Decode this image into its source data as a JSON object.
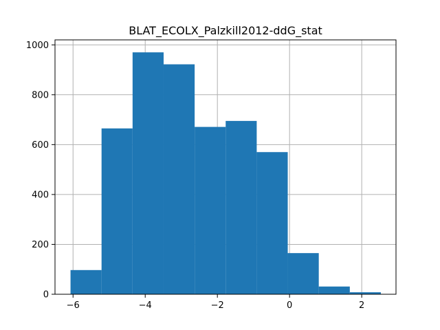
{
  "chart_data": {
    "type": "bar",
    "title": "BLAT_ECOLX_Palzkill2012-ddG_stat",
    "xlabel": "",
    "ylabel": "",
    "bin_edges": [
      -6.07,
      -5.21,
      -4.35,
      -3.49,
      -2.63,
      -1.77,
      -0.91,
      -0.05,
      0.81,
      1.67,
      2.53
    ],
    "values": [
      97,
      665,
      970,
      922,
      671,
      695,
      570,
      165,
      31,
      8
    ],
    "xlim": [
      -6.5,
      2.95
    ],
    "ylim": [
      0,
      1020
    ],
    "xticks": [
      -6,
      -4,
      -2,
      0,
      2
    ],
    "xtick_labels": [
      "−6",
      "−4",
      "−2",
      "0",
      "2"
    ],
    "yticks": [
      0,
      200,
      400,
      600,
      800,
      1000
    ],
    "ytick_labels": [
      "0",
      "200",
      "400",
      "600",
      "800",
      "1000"
    ],
    "grid": true,
    "bar_color": "#1f77b4",
    "grid_color": "#b0b0b0"
  }
}
